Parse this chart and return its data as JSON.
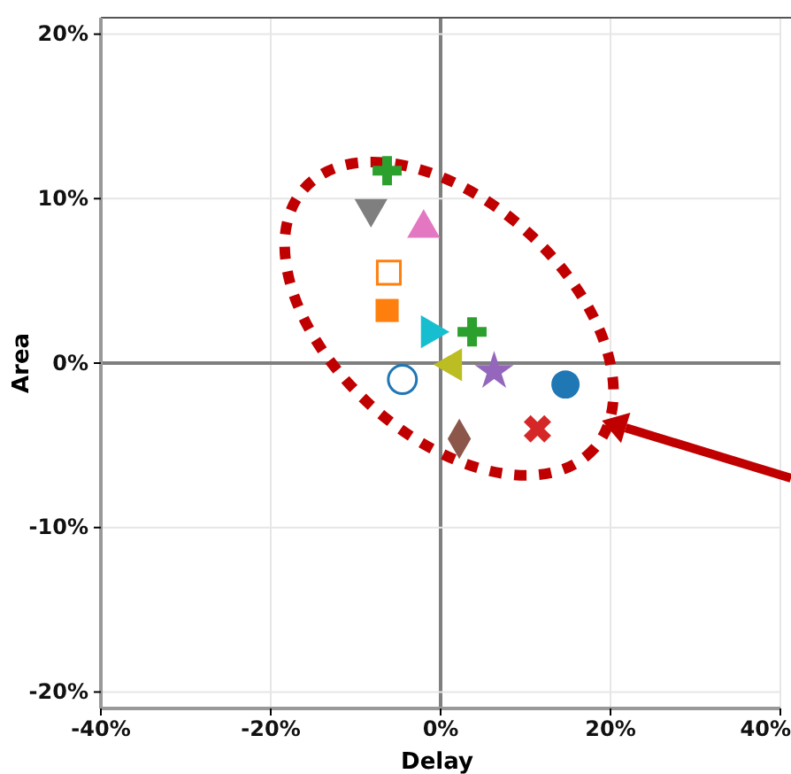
{
  "chart_data": {
    "type": "scatter",
    "xlabel": "Delay",
    "ylabel": "Area",
    "xlim": [
      -40,
      40
    ],
    "xticks": [
      {
        "value": -40,
        "label": "-40%"
      },
      {
        "value": -20,
        "label": "-20%"
      },
      {
        "value": 0,
        "label": "0%"
      },
      {
        "value": 20,
        "label": "20%"
      },
      {
        "value": 40,
        "label": "40%"
      }
    ],
    "ylim": [
      -21,
      21
    ],
    "yticks": [
      {
        "value": -20,
        "label": "-20%"
      },
      {
        "value": -10,
        "label": "-10%"
      },
      {
        "value": 0,
        "label": "0%"
      },
      {
        "value": 10,
        "label": "10%"
      },
      {
        "value": 20,
        "label": "20%"
      }
    ],
    "grid": true,
    "series": [
      {
        "color": "#7f7f7f",
        "marker": "triangle-down",
        "x": [
          -8.2
        ],
        "values": [
          9.4
        ]
      },
      {
        "color": "#2ca02c",
        "marker": "cross",
        "x": [
          -6.3
        ],
        "values": [
          11.7
        ]
      },
      {
        "color": "#e377c2",
        "marker": "triangle",
        "x": [
          -2.0
        ],
        "values": [
          8.2
        ]
      },
      {
        "color": "#ff7f0e",
        "marker": "square-open",
        "x": [
          -6.1
        ],
        "values": [
          5.5
        ]
      },
      {
        "color": "#ff7f0e",
        "marker": "square",
        "x": [
          -6.3
        ],
        "values": [
          3.2
        ]
      },
      {
        "color": "#17becf",
        "marker": "triangle-right",
        "x": [
          -1.2
        ],
        "values": [
          1.9
        ]
      },
      {
        "color": "#2ca02c",
        "marker": "cross",
        "x": [
          3.7
        ],
        "values": [
          1.9
        ]
      },
      {
        "color": "#bcbd22",
        "marker": "triangle-left",
        "x": [
          1.4
        ],
        "values": [
          -0.1
        ]
      },
      {
        "color": "#9467bd",
        "marker": "star",
        "x": [
          6.3
        ],
        "values": [
          -0.5
        ]
      },
      {
        "color": "#1f77b4",
        "marker": "circle-open",
        "x": [
          -4.5
        ],
        "values": [
          -1.0
        ]
      },
      {
        "color": "#1f77b4",
        "marker": "circle",
        "x": [
          14.7
        ],
        "values": [
          -1.3
        ]
      },
      {
        "color": "#d62728",
        "marker": "x",
        "x": [
          11.4
        ],
        "values": [
          -4.0
        ]
      },
      {
        "color": "#8c564b",
        "marker": "diamond",
        "x": [
          2.2
        ],
        "values": [
          -4.6
        ]
      }
    ]
  }
}
